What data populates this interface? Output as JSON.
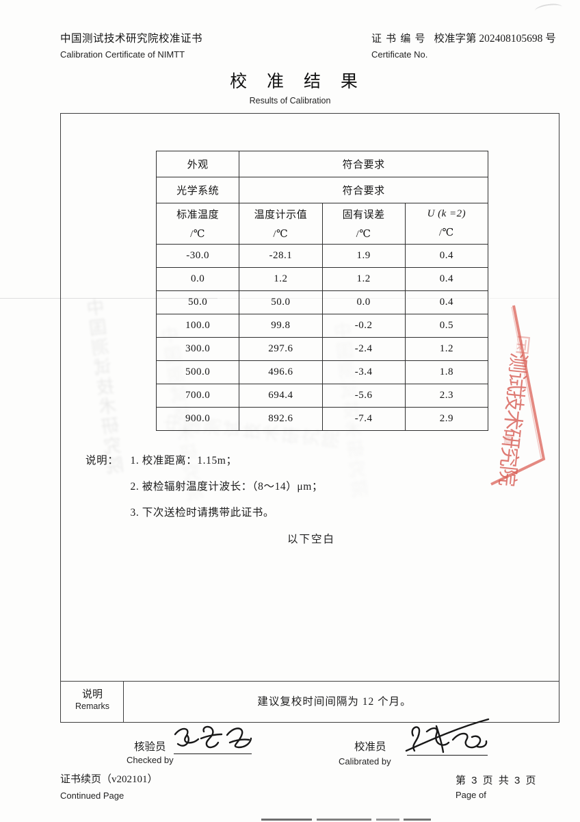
{
  "header": {
    "left_title_zh": "中国测试技术研究院校准证书",
    "left_title_en": "Calibration Certificate of NIMTT",
    "cert_no_label_zh": "证 书 编 号",
    "cert_no_value": "校准字第 202408105698 号",
    "cert_no_label_en": "Certificate No."
  },
  "title": {
    "zh": "校 准 结 果",
    "en": "Results of Calibration"
  },
  "results_table": {
    "pre_rows": [
      {
        "label": "外观",
        "value": "符合要求"
      },
      {
        "label": "光学系统",
        "value": "符合要求"
      }
    ],
    "columns": [
      {
        "name": "标准温度",
        "unit": "/℃"
      },
      {
        "name": "温度计示值",
        "unit": "/℃"
      },
      {
        "name": "固有误差",
        "unit": "/℃"
      },
      {
        "name": "U (k =2)",
        "unit": "/℃"
      }
    ],
    "rows": [
      [
        "-30.0",
        "-28.1",
        "1.9",
        "0.4"
      ],
      [
        "0.0",
        "1.2",
        "1.2",
        "0.4"
      ],
      [
        "50.0",
        "50.0",
        "0.0",
        "0.4"
      ],
      [
        "100.0",
        "99.8",
        "-0.2",
        "0.5"
      ],
      [
        "300.0",
        "297.6",
        "-2.4",
        "1.2"
      ],
      [
        "500.0",
        "496.6",
        "-3.4",
        "1.8"
      ],
      [
        "700.0",
        "694.4",
        "-5.6",
        "2.3"
      ],
      [
        "900.0",
        "892.6",
        "-7.4",
        "2.9"
      ]
    ]
  },
  "notes": {
    "label": "说明：",
    "items": [
      "1. 校准距离：1.15m；",
      "2. 被检辐射温度计波长：（8～14）μm；",
      "3. 下次送检时请携带此证书。"
    ],
    "end_blank": "以下空白"
  },
  "remarks": {
    "label_zh": "说明",
    "label_en": "Remarks",
    "content": "建议复校时间间隔为 12 个月。"
  },
  "signatures": {
    "checked_label_zh": "核验员",
    "checked_label_en": "Checked by",
    "calibrated_label_zh": "校准员",
    "calibrated_label_en": "Calibrated by"
  },
  "footer": {
    "left_zh": "证书续页（v202101）",
    "left_en": "Continued Page",
    "right_zh": "第 3 页 共 3 页",
    "right_en": "Page of"
  },
  "stamp": {
    "top_partial_char": "国",
    "text": "测试技术研究院",
    "small_char": "章",
    "border_color": "#dd6b62"
  },
  "artifacts": {
    "ghost_text": "中国测试技术研究院"
  }
}
